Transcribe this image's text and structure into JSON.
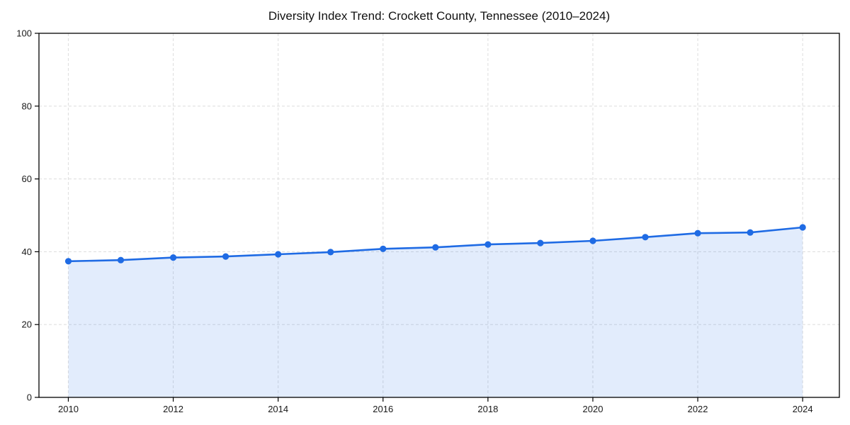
{
  "chart_data": {
    "type": "line",
    "title": "Diversity Index Trend: Crockett County, Tennessee (2010–2024)",
    "x": [
      2010,
      2011,
      2012,
      2013,
      2014,
      2015,
      2016,
      2017,
      2018,
      2019,
      2020,
      2021,
      2022,
      2023,
      2024
    ],
    "values": [
      37.4,
      37.7,
      38.4,
      38.7,
      39.3,
      39.9,
      40.8,
      41.2,
      42.0,
      42.4,
      43.0,
      44.0,
      45.1,
      45.3,
      46.7
    ],
    "xticks": [
      2010,
      2012,
      2014,
      2016,
      2018,
      2020,
      2022,
      2024
    ],
    "yticks": [
      0,
      20,
      40,
      60,
      80,
      100
    ],
    "xlim": [
      2009.44,
      2024.7
    ],
    "ylim": [
      0,
      100
    ],
    "grid": true,
    "grid_style": "dashed",
    "legend": "none",
    "marker": "circle",
    "area_fill": true,
    "colors": {
      "line": "#1f6be4",
      "fill_opacity": 0.13,
      "grid": "#e0e0e0",
      "axis": "#000000",
      "tick_text": "#1a1a1a",
      "background": "#ffffff"
    }
  }
}
